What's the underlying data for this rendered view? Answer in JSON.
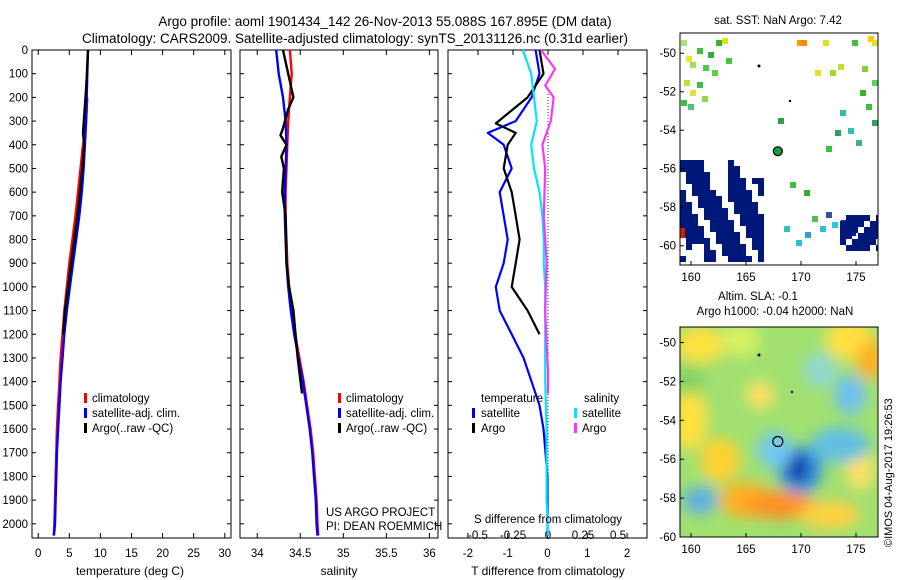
{
  "header": {
    "title_line1": "Argo profile: aoml 1901434_142 26-Nov-2013 55.088S 167.895E (DM data)",
    "title_line2": "Climatology: CARS2009. Satellite-adjusted climatology: synTS_20131126.nc (0.31d earlier)"
  },
  "colors": {
    "climatology": "#ff0000",
    "satellite": "#0000ff",
    "argo": "#000000",
    "salinity_satellite": "#00e5ff",
    "salinity_argo": "#ff33ff"
  },
  "chart_data": [
    {
      "id": "temperature",
      "type": "line",
      "xlabel": "temperature (deg C)",
      "ylabel": "",
      "xlim": [
        -1,
        31
      ],
      "ylim": [
        2060,
        0
      ],
      "xticks": [
        0,
        5,
        10,
        15,
        20,
        25,
        30
      ],
      "yticks": [
        0,
        100,
        200,
        300,
        400,
        500,
        600,
        700,
        800,
        900,
        1000,
        1100,
        1200,
        1300,
        1400,
        1500,
        1600,
        1700,
        1800,
        1900,
        2000
      ],
      "legend": [
        "climatology",
        "satellite-adj. clim.",
        "Argo(..raw -QC)"
      ],
      "legend_position": "bottom-right",
      "series": [
        {
          "name": "climatology",
          "color": "#ff0000",
          "x": [
            7.9,
            7.8,
            7.7,
            7.5,
            7.2,
            6.8,
            6.4,
            6.0,
            5.5,
            5.0,
            4.6,
            4.2,
            3.9,
            3.6,
            3.4,
            3.2,
            3.0,
            2.9,
            2.8,
            2.7,
            2.6,
            2.5
          ],
          "y": [
            200,
            250,
            300,
            350,
            400,
            500,
            600,
            700,
            800,
            900,
            1000,
            1100,
            1200,
            1300,
            1400,
            1500,
            1600,
            1700,
            1800,
            1900,
            2000,
            2050
          ]
        },
        {
          "name": "satellite-adj. clim.",
          "color": "#0000ff",
          "x": [
            8.0,
            7.9,
            7.8,
            7.7,
            7.5,
            7.3,
            7.0,
            6.6,
            6.1,
            5.6,
            5.1,
            4.6,
            4.2,
            3.9,
            3.6,
            3.4,
            3.2,
            3.0,
            2.9,
            2.8,
            2.7,
            2.6,
            2.5
          ],
          "y": [
            0,
            100,
            200,
            300,
            400,
            500,
            600,
            700,
            800,
            900,
            1000,
            1100,
            1200,
            1300,
            1400,
            1500,
            1600,
            1700,
            1800,
            1900,
            2000,
            2030,
            2050
          ]
        },
        {
          "name": "Argo(..raw -QC)",
          "color": "#000000",
          "x": [
            8.0,
            7.9,
            7.8,
            7.6,
            7.2,
            7.4,
            7.1,
            6.7,
            6.3,
            5.8,
            5.3,
            4.8,
            4.3,
            4.0
          ],
          "y": [
            0,
            60,
            120,
            200,
            350,
            400,
            500,
            600,
            700,
            800,
            900,
            1000,
            1100,
            1200
          ]
        }
      ]
    },
    {
      "id": "salinity",
      "type": "line",
      "xlabel": "salinity",
      "ylabel": "",
      "xlim": [
        33.8,
        36.1
      ],
      "ylim": [
        2060,
        0
      ],
      "xticks": [
        34,
        34.5,
        35,
        35.5,
        36
      ],
      "xticklabels": [
        "34",
        "34.5",
        "35",
        "35.5",
        "36"
      ],
      "legend": [
        "climatology",
        "satellite-adj. clim.",
        "Argo(..raw -QC)"
      ],
      "legend_position": "bottom-right",
      "annotations": [
        "US ARGO PROJECT",
        "PI: DEAN ROEMMICH"
      ],
      "series": [
        {
          "name": "climatology",
          "color": "#ff0000",
          "x": [
            34.38,
            34.4,
            34.38,
            34.36,
            34.35,
            34.34,
            34.33,
            34.33,
            34.34,
            34.35,
            34.37,
            34.4,
            34.44,
            34.49,
            34.54,
            34.58,
            34.62,
            34.65,
            34.67,
            34.69,
            34.7,
            34.71
          ],
          "y": [
            0,
            100,
            200,
            300,
            400,
            500,
            600,
            700,
            800,
            900,
            1000,
            1100,
            1200,
            1300,
            1400,
            1500,
            1600,
            1700,
            1800,
            1900,
            2000,
            2050
          ]
        },
        {
          "name": "satellite-adj. clim.",
          "color": "#0000ff",
          "x": [
            34.22,
            34.25,
            34.3,
            34.33,
            34.34,
            34.33,
            34.32,
            34.32,
            34.33,
            34.34,
            34.36,
            34.39,
            34.43,
            34.48,
            34.53,
            34.57,
            34.61,
            34.64,
            34.66,
            34.68,
            34.69,
            34.7
          ],
          "y": [
            0,
            100,
            200,
            300,
            400,
            500,
            600,
            700,
            800,
            900,
            1000,
            1100,
            1200,
            1300,
            1400,
            1500,
            1600,
            1700,
            1800,
            1900,
            2000,
            2050
          ]
        },
        {
          "name": "Argo(..raw -QC)",
          "color": "#000000",
          "x": [
            34.3,
            34.36,
            34.42,
            34.36,
            34.3,
            34.27,
            34.34,
            34.28,
            34.31,
            34.29,
            34.33,
            34.34,
            34.37,
            34.42,
            34.47,
            34.52
          ],
          "y": [
            0,
            100,
            200,
            250,
            330,
            360,
            400,
            450,
            500,
            600,
            700,
            900,
            1000,
            1100,
            1300,
            1450
          ]
        }
      ]
    },
    {
      "id": "differences",
      "type": "line",
      "xlabel": "T difference from climatology",
      "xlabel_top": "S difference from climatology",
      "ylabel": "",
      "xlim": [
        -2.5,
        2.5
      ],
      "ylim": [
        2060,
        0
      ],
      "xticks": [
        -2,
        -1,
        0,
        1,
        2
      ],
      "s_xticks": [
        -0.5,
        -0.25,
        0,
        0.25,
        0.5
      ],
      "s_xticklabels": [
        "-0.5",
        "-0.25",
        "0",
        "0.25",
        "0.5"
      ],
      "legend_left_title": "temperature",
      "legend_right_title": "salinity",
      "legend": [
        "satellite",
        "Argo",
        "satellite",
        "Argo"
      ],
      "legend_position": "bottom",
      "series": [
        {
          "name": "satellite",
          "group": "temperature",
          "color": "#0000ff",
          "x": [
            -0.3,
            -0.2,
            -0.4,
            -0.8,
            -1.5,
            -1.1,
            -0.9,
            -1.2,
            -1.1,
            -1.0,
            -1.1,
            -1.3,
            -1.2,
            -0.9,
            -0.6,
            -0.4,
            -0.2,
            -0.1,
            0.0,
            0.0,
            0.0
          ],
          "y": [
            0,
            100,
            200,
            300,
            350,
            400,
            500,
            600,
            700,
            800,
            900,
            1000,
            1100,
            1200,
            1300,
            1400,
            1500,
            1600,
            1800,
            2000,
            2050
          ]
        },
        {
          "name": "Argo",
          "group": "temperature",
          "color": "#000000",
          "x": [
            -0.2,
            -0.1,
            -0.5,
            -1.3,
            -0.8,
            -1.0,
            -1.1,
            -0.9,
            -0.8,
            -0.7,
            -0.8,
            -0.9,
            -0.5,
            -0.2
          ],
          "y": [
            0,
            100,
            200,
            310,
            350,
            400,
            500,
            600,
            700,
            800,
            900,
            1000,
            1100,
            1200
          ]
        },
        {
          "name": "satellite",
          "group": "salinity",
          "color": "#00e5ff",
          "x": [
            -0.18,
            -0.12,
            -0.1,
            -0.08,
            -0.12,
            -0.1,
            -0.06,
            -0.04,
            -0.03,
            -0.03,
            -0.02,
            -0.02,
            -0.02,
            -0.01,
            -0.01,
            -0.01,
            -0.01,
            0.0
          ],
          "y": [
            0,
            100,
            200,
            300,
            400,
            500,
            600,
            700,
            800,
            900,
            1000,
            1200,
            1400,
            1600,
            1700,
            1800,
            1900,
            2050
          ]
        },
        {
          "name": "Argo",
          "group": "salinity",
          "color": "#ff33ff",
          "x": [
            -0.05,
            0.05,
            -0.02,
            0.04,
            0.02,
            -0.04,
            -0.02,
            -0.03,
            -0.01,
            -0.02,
            -0.01,
            0.0,
            0.0
          ],
          "y": [
            0,
            80,
            150,
            200,
            300,
            400,
            500,
            700,
            900,
            1100,
            1250,
            1350,
            1450
          ]
        }
      ]
    },
    {
      "id": "sst_map",
      "type": "heatmap",
      "title": "sat. SST: NaN Argo: 7.42",
      "xlabel": "",
      "ylabel": "",
      "xlim": [
        159,
        177
      ],
      "ylim": [
        -61,
        -49
      ],
      "xticks": [
        160,
        165,
        170,
        175
      ],
      "yticks": [
        -50,
        -52,
        -54,
        -56,
        -58,
        -60
      ],
      "argo_position": {
        "lon": 167.895,
        "lat": -55.088
      }
    },
    {
      "id": "sla_map",
      "type": "heatmap",
      "title": "Altim. SLA: -0.1",
      "subtitle": "Argo h1000: -0.04 h2000: NaN",
      "xlabel": "",
      "ylabel": "",
      "xlim": [
        159,
        177
      ],
      "ylim": [
        -60,
        -49
      ],
      "xticks": [
        160,
        165,
        170,
        175
      ],
      "yticks": [
        -50,
        -52,
        -54,
        -56,
        -58,
        -60
      ],
      "argo_position": {
        "lon": 167.895,
        "lat": -55.088
      }
    }
  ],
  "watermark": "©IMOS 04-Aug-2017 19:26:53"
}
